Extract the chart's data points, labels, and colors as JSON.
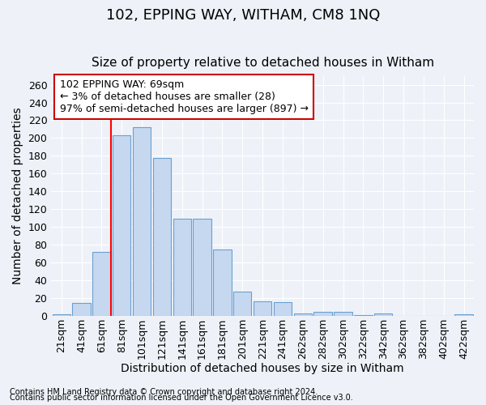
{
  "title": "102, EPPING WAY, WITHAM, CM8 1NQ",
  "subtitle": "Size of property relative to detached houses in Witham",
  "xlabel": "Distribution of detached houses by size in Witham",
  "ylabel": "Number of detached properties",
  "categories": [
    "21sqm",
    "41sqm",
    "61sqm",
    "81sqm",
    "101sqm",
    "121sqm",
    "141sqm",
    "161sqm",
    "181sqm",
    "201sqm",
    "221sqm",
    "241sqm",
    "262sqm",
    "282sqm",
    "302sqm",
    "322sqm",
    "342sqm",
    "362sqm",
    "382sqm",
    "402sqm",
    "422sqm"
  ],
  "values": [
    2,
    14,
    72,
    203,
    212,
    178,
    109,
    109,
    75,
    27,
    16,
    15,
    3,
    4,
    4,
    1,
    3,
    0,
    0,
    0,
    2
  ],
  "bar_color": "#c5d8f0",
  "bar_edge_color": "#6aa0d0",
  "red_line_index": 2,
  "annotation_line1": "102 EPPING WAY: 69sqm",
  "annotation_line2": "← 3% of detached houses are smaller (28)",
  "annotation_line3": "97% of semi-detached houses are larger (897) →",
  "annotation_box_facecolor": "#ffffff",
  "annotation_box_edgecolor": "#cc0000",
  "footnote1": "Contains HM Land Registry data © Crown copyright and database right 2024.",
  "footnote2": "Contains public sector information licensed under the Open Government Licence v3.0.",
  "ylim": [
    0,
    270
  ],
  "yticks": [
    0,
    20,
    40,
    60,
    80,
    100,
    120,
    140,
    160,
    180,
    200,
    220,
    240,
    260
  ],
  "bg_color": "#eef2f8",
  "grid_color": "#ffffff",
  "title_fontsize": 13,
  "subtitle_fontsize": 11,
  "axis_label_fontsize": 10,
  "tick_fontsize": 9,
  "annotation_fontsize": 9,
  "footnote_fontsize": 7
}
